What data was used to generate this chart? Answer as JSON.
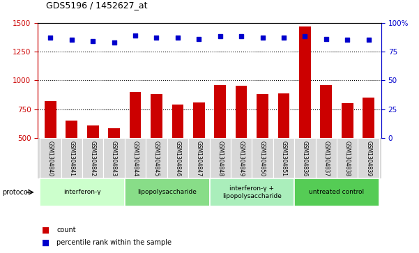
{
  "title": "GDS5196 / 1452627_at",
  "samples": [
    "GSM1304840",
    "GSM1304841",
    "GSM1304842",
    "GSM1304843",
    "GSM1304844",
    "GSM1304845",
    "GSM1304846",
    "GSM1304847",
    "GSM1304848",
    "GSM1304849",
    "GSM1304850",
    "GSM1304851",
    "GSM1304836",
    "GSM1304837",
    "GSM1304838",
    "GSM1304839"
  ],
  "counts": [
    820,
    650,
    610,
    585,
    900,
    880,
    790,
    810,
    960,
    955,
    880,
    885,
    1470,
    960,
    800,
    850
  ],
  "percentiles": [
    87,
    85,
    84,
    83,
    89,
    87,
    87,
    86,
    88,
    88,
    87,
    87,
    88,
    86,
    85,
    85
  ],
  "groups": [
    {
      "label": "interferon-γ",
      "start": 0,
      "end": 4,
      "color": "#ccffcc"
    },
    {
      "label": "lipopolysaccharide",
      "start": 4,
      "end": 8,
      "color": "#88dd88"
    },
    {
      "label": "interferon-γ +\nlipopolysaccharide",
      "start": 8,
      "end": 12,
      "color": "#aaeebb"
    },
    {
      "label": "untreated control",
      "start": 12,
      "end": 16,
      "color": "#55cc55"
    }
  ],
  "ylim_left": [
    500,
    1500
  ],
  "ylim_right": [
    0,
    100
  ],
  "bar_color": "#cc0000",
  "dot_color": "#0000cc",
  "axis_color_left": "#cc0000",
  "axis_color_right": "#0000cc",
  "sample_bg": "#d8d8d8",
  "bar_width": 0.55
}
